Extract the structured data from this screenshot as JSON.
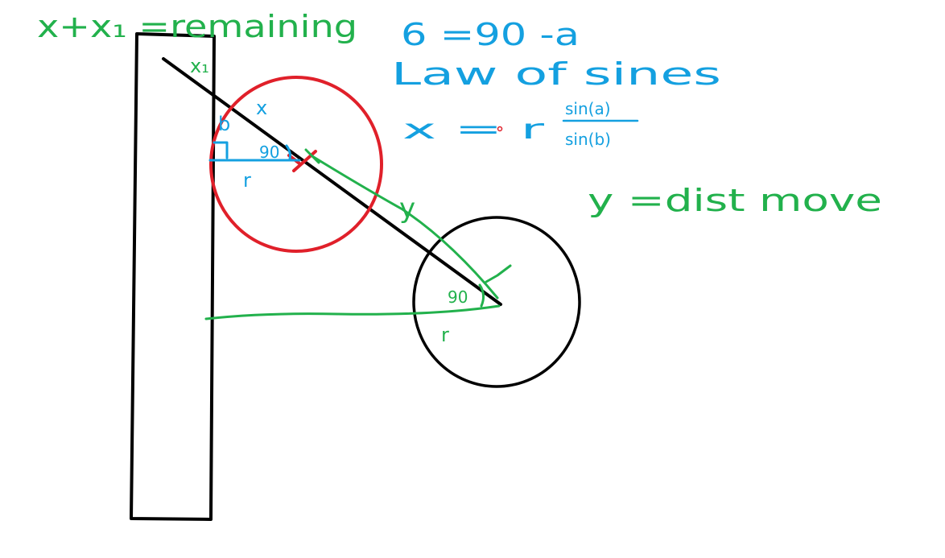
{
  "colors": {
    "black": "#000000",
    "red": "#e0202a",
    "green": "#22b14c",
    "blue": "#14a0e0"
  },
  "notes": {
    "remaining": "x+x₁ =remaining",
    "b_equation": "6 =90 -a",
    "law_of_sines": "Law of sines",
    "x_formula": "x = r",
    "sin_a": "sin(a)",
    "sin_b": "sin(b)",
    "y_dist": "y =dist move"
  },
  "labels": {
    "x1": "x₁",
    "x": "x",
    "b": "b",
    "ninety_red": "90",
    "r_red": "r",
    "y": "y",
    "ninety_black": "90",
    "r_black": "r"
  }
}
